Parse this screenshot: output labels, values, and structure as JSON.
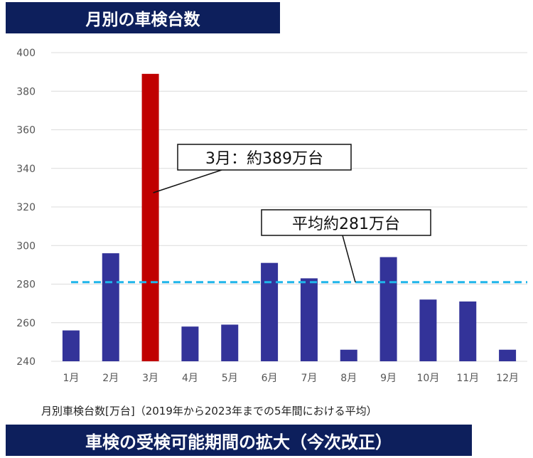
{
  "header": {
    "title": "月別の車検台数"
  },
  "footer": {
    "title": "車検の受検可能期間の拡大（今次改正）"
  },
  "caption": "月別車検台数[万台]（2019年から2023年までの5年間における平均）",
  "colors": {
    "bar": "#333399",
    "highlight": "#c00000",
    "average_line": "#1fb5ea",
    "banner": "#0d1f5c"
  },
  "chart_data": {
    "type": "bar",
    "title": "月別の車検台数",
    "ylabel": "",
    "xlabel": "",
    "categories": [
      "1月",
      "2月",
      "3月",
      "4月",
      "5月",
      "6月",
      "7月",
      "8月",
      "9月",
      "10月",
      "11月",
      "12月"
    ],
    "values": [
      256,
      296,
      389,
      258,
      259,
      291,
      283,
      246,
      294,
      272,
      271,
      246
    ],
    "highlight_index": 2,
    "ylim": [
      240,
      400
    ],
    "yticks": [
      240,
      260,
      280,
      300,
      320,
      340,
      360,
      380,
      400
    ],
    "grid": true,
    "average": 281,
    "annotations": [
      {
        "text": "3月：約389万台",
        "target": "bar-3"
      },
      {
        "text": "平均約281万台",
        "target": "average-line"
      }
    ]
  }
}
